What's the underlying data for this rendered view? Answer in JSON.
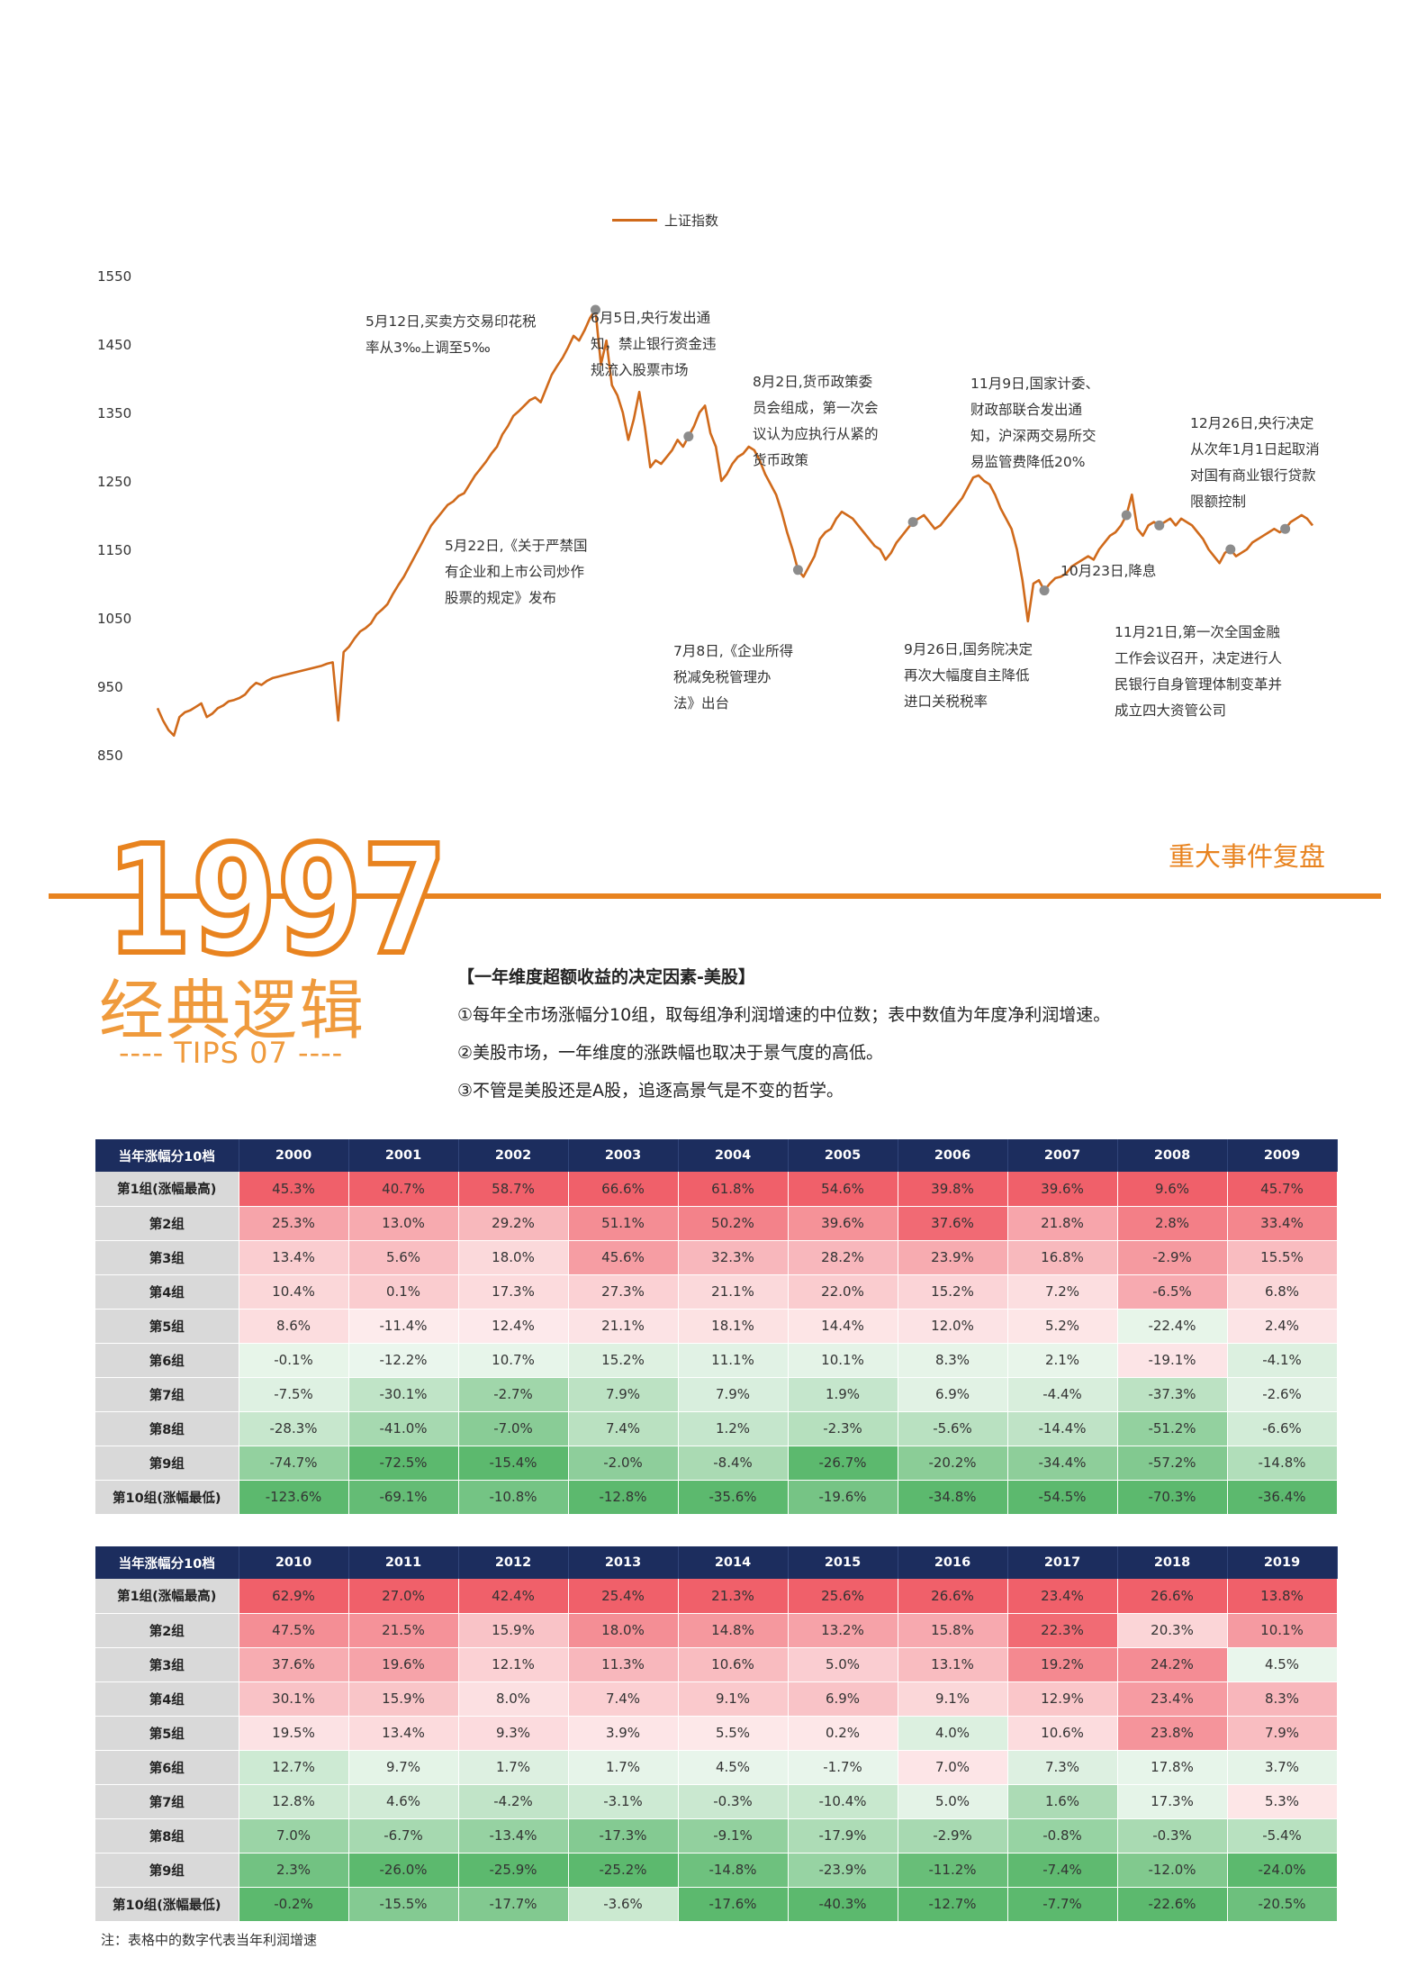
{
  "chart_data": {
    "type": "line",
    "series": [
      {
        "name": "上证指数",
        "color": "#d06a1b",
        "values": [
          918,
          900,
          886,
          878,
          905,
          912,
          915,
          920,
          925,
          905,
          910,
          918,
          922,
          928,
          930,
          933,
          938,
          948,
          955,
          952,
          958,
          962,
          964,
          966,
          968,
          970,
          972,
          974,
          976,
          978,
          980,
          983,
          985,
          900,
          1000,
          1008,
          1020,
          1030,
          1035,
          1042,
          1055,
          1062,
          1070,
          1085,
          1098,
          1110,
          1125,
          1140,
          1155,
          1170,
          1185,
          1195,
          1205,
          1215,
          1220,
          1228,
          1232,
          1245,
          1258,
          1268,
          1278,
          1290,
          1300,
          1318,
          1330,
          1345,
          1352,
          1360,
          1368,
          1372,
          1365,
          1385,
          1405,
          1418,
          1430,
          1445,
          1462,
          1455,
          1470,
          1488,
          1500,
          1420,
          1455,
          1390,
          1375,
          1350,
          1310,
          1340,
          1380,
          1330,
          1270,
          1280,
          1275,
          1285,
          1295,
          1310,
          1300,
          1315,
          1330,
          1350,
          1360,
          1320,
          1300,
          1250,
          1260,
          1275,
          1285,
          1290,
          1300,
          1295,
          1280,
          1260,
          1245,
          1230,
          1205,
          1175,
          1150,
          1120,
          1110,
          1125,
          1140,
          1165,
          1175,
          1180,
          1195,
          1205,
          1200,
          1195,
          1185,
          1175,
          1165,
          1155,
          1150,
          1135,
          1145,
          1160,
          1170,
          1180,
          1190,
          1195,
          1200,
          1190,
          1180,
          1185,
          1195,
          1205,
          1215,
          1225,
          1240,
          1255,
          1258,
          1250,
          1245,
          1230,
          1210,
          1195,
          1180,
          1150,
          1105,
          1045,
          1100,
          1105,
          1090,
          1100,
          1108,
          1110,
          1115,
          1125,
          1130,
          1135,
          1140,
          1135,
          1150,
          1160,
          1170,
          1175,
          1185,
          1200,
          1230,
          1180,
          1170,
          1185,
          1190,
          1185,
          1190,
          1195,
          1185,
          1195,
          1190,
          1185,
          1175,
          1165,
          1150,
          1140,
          1130,
          1145,
          1150,
          1140,
          1145,
          1150,
          1160,
          1165,
          1170,
          1175,
          1180,
          1175,
          1180,
          1190,
          1195,
          1200,
          1195,
          1185
        ]
      }
    ],
    "y_ticks": [
      "1550",
      "1450",
      "1350",
      "1250",
      "1150",
      "1050",
      "950",
      "850"
    ],
    "ylim": [
      850,
      1550
    ],
    "legend": "top-center",
    "annotations": [
      {
        "lines": [
          "5月12日,买卖方交易印花税",
          "率从3‰上调至5‰"
        ]
      },
      {
        "lines": [
          "6月5日,央行发出通",
          "知，禁止银行资金违",
          "规流入股票市场"
        ]
      },
      {
        "lines": [
          "5月22日,《关于严禁国",
          "有企业和上市公司炒作",
          "股票的规定》发布"
        ]
      },
      {
        "lines": [
          "8月2日,货币政策委",
          "员会组成，第一次会",
          "议认为应执行从紧的",
          "货币政策"
        ]
      },
      {
        "lines": [
          "7月8日,《企业所得",
          "税减免税管理办",
          "法》出台"
        ]
      },
      {
        "lines": [
          "11月9日,国家计委、",
          "财政部联合发出通",
          "知，沪深两交易所交",
          "易监管费降低20%"
        ]
      },
      {
        "lines": [
          "9月26日,国务院决定",
          "再次大幅度自主降低",
          "进口关税税率"
        ]
      },
      {
        "lines": [
          "10月23日,降息"
        ]
      },
      {
        "lines": [
          "12月26日,央行决定",
          "从次年1月1日起取消",
          "对国有商业银行贷款",
          "限额控制"
        ]
      },
      {
        "lines": [
          "11月21日,第一次全国金融",
          "工作会议召开，决定进行人",
          "民银行自身管理体制变革并",
          "成立四大资管公司"
        ]
      }
    ],
    "event_points": [
      1500,
      1355,
      1110,
      1200,
      1110,
      1175,
      1190,
      1165,
      1195
    ]
  },
  "header": {
    "year": "1997",
    "event_review": "重大事件复盘",
    "logic_title": "经典逻辑",
    "tips": "---- TIPS 07 ----"
  },
  "points": {
    "heading": "【一年维度超额收益的决定因素-美股】",
    "p1": "①每年全市场涨幅分10组，取每组净利润增速的中位数；表中数值为年度净利润增速。",
    "p2": "②美股市场，一年维度的涨跌幅也取决于景气度的高低。",
    "p3": "③不管是美股还是A股，追逐高景气是不变的哲学。"
  },
  "table1": {
    "corner": "当年涨幅分10档",
    "years": [
      "2000",
      "2001",
      "2002",
      "2003",
      "2004",
      "2005",
      "2006",
      "2007",
      "2008",
      "2009"
    ],
    "rows": [
      {
        "label": "第1组(涨幅最高)",
        "values": [
          "45.3%",
          "40.7%",
          "58.7%",
          "66.6%",
          "61.8%",
          "54.6%",
          "39.8%",
          "39.6%",
          "9.6%",
          "45.7%"
        ]
      },
      {
        "label": "第2组",
        "values": [
          "25.3%",
          "13.0%",
          "29.2%",
          "51.1%",
          "50.2%",
          "39.6%",
          "37.6%",
          "21.8%",
          "2.8%",
          "33.4%"
        ]
      },
      {
        "label": "第3组",
        "values": [
          "13.4%",
          "5.6%",
          "18.0%",
          "45.6%",
          "32.3%",
          "28.2%",
          "23.9%",
          "16.8%",
          "-2.9%",
          "15.5%"
        ]
      },
      {
        "label": "第4组",
        "values": [
          "10.4%",
          "0.1%",
          "17.3%",
          "27.3%",
          "21.1%",
          "22.0%",
          "15.2%",
          "7.2%",
          "-6.5%",
          "6.8%"
        ]
      },
      {
        "label": "第5组",
        "values": [
          "8.6%",
          "-11.4%",
          "12.4%",
          "21.1%",
          "18.1%",
          "14.4%",
          "12.0%",
          "5.2%",
          "-22.4%",
          "2.4%"
        ]
      },
      {
        "label": "第6组",
        "values": [
          "-0.1%",
          "-12.2%",
          "10.7%",
          "15.2%",
          "11.1%",
          "10.1%",
          "8.3%",
          "2.1%",
          "-19.1%",
          "-4.1%"
        ]
      },
      {
        "label": "第7组",
        "values": [
          "-7.5%",
          "-30.1%",
          "-2.7%",
          "7.9%",
          "7.9%",
          "1.9%",
          "6.9%",
          "-4.4%",
          "-37.3%",
          "-2.6%"
        ]
      },
      {
        "label": "第8组",
        "values": [
          "-28.3%",
          "-41.0%",
          "-7.0%",
          "7.4%",
          "1.2%",
          "-2.3%",
          "-5.6%",
          "-14.4%",
          "-51.2%",
          "-6.6%"
        ]
      },
      {
        "label": "第9组",
        "values": [
          "-74.7%",
          "-72.5%",
          "-15.4%",
          "-2.0%",
          "-8.4%",
          "-26.7%",
          "-20.2%",
          "-34.4%",
          "-57.2%",
          "-14.8%"
        ]
      },
      {
        "label": "第10组(涨幅最低)",
        "values": [
          "-123.6%",
          "-69.1%",
          "-10.8%",
          "-12.8%",
          "-35.6%",
          "-19.6%",
          "-34.8%",
          "-54.5%",
          "-70.3%",
          "-36.4%"
        ]
      }
    ]
  },
  "table2": {
    "corner": "当年涨幅分10档",
    "years": [
      "2010",
      "2011",
      "2012",
      "2013",
      "2014",
      "2015",
      "2016",
      "2017",
      "2018",
      "2019"
    ],
    "rows": [
      {
        "label": "第1组(涨幅最高)",
        "values": [
          "62.9%",
          "27.0%",
          "42.4%",
          "25.4%",
          "21.3%",
          "25.6%",
          "26.6%",
          "23.4%",
          "26.6%",
          "13.8%"
        ]
      },
      {
        "label": "第2组",
        "values": [
          "47.5%",
          "21.5%",
          "15.9%",
          "18.0%",
          "14.8%",
          "13.2%",
          "15.8%",
          "22.3%",
          "20.3%",
          "10.1%"
        ]
      },
      {
        "label": "第3组",
        "values": [
          "37.6%",
          "19.6%",
          "12.1%",
          "11.3%",
          "10.6%",
          "5.0%",
          "13.1%",
          "19.2%",
          "24.2%",
          "4.5%"
        ]
      },
      {
        "label": "第4组",
        "values": [
          "30.1%",
          "15.9%",
          "8.0%",
          "7.4%",
          "9.1%",
          "6.9%",
          "9.1%",
          "12.9%",
          "23.4%",
          "8.3%"
        ]
      },
      {
        "label": "第5组",
        "values": [
          "19.5%",
          "13.4%",
          "9.3%",
          "3.9%",
          "5.5%",
          "0.2%",
          "4.0%",
          "10.6%",
          "23.8%",
          "7.9%"
        ]
      },
      {
        "label": "第6组",
        "values": [
          "12.7%",
          "9.7%",
          "1.7%",
          "1.7%",
          "4.5%",
          "-1.7%",
          "7.0%",
          "7.3%",
          "17.8%",
          "3.7%"
        ]
      },
      {
        "label": "第7组",
        "values": [
          "12.8%",
          "4.6%",
          "-4.2%",
          "-3.1%",
          "-0.3%",
          "-10.4%",
          "5.0%",
          "1.6%",
          "17.3%",
          "5.3%"
        ]
      },
      {
        "label": "第8组",
        "values": [
          "7.0%",
          "-6.7%",
          "-13.4%",
          "-17.3%",
          "-9.1%",
          "-17.9%",
          "-2.9%",
          "-0.8%",
          "-0.3%",
          "-5.4%"
        ]
      },
      {
        "label": "第9组",
        "values": [
          "2.3%",
          "-26.0%",
          "-25.9%",
          "-25.2%",
          "-14.8%",
          "-23.9%",
          "-11.2%",
          "-7.4%",
          "-12.0%",
          "-24.0%"
        ]
      },
      {
        "label": "第10组(涨幅最低)",
        "values": [
          "-0.2%",
          "-15.5%",
          "-17.7%",
          "-3.6%",
          "-17.6%",
          "-40.3%",
          "-12.7%",
          "-7.7%",
          "-22.6%",
          "-20.5%"
        ]
      }
    ]
  },
  "note": "注：表格中的数字代表当年利润增速",
  "colors": {
    "accent": "#e8831f",
    "line": "#d06a1b",
    "table_header": "#1c2d5e",
    "row_header": "#d9d9d9",
    "positive": "#f0606a",
    "negative": "#5cb96e"
  }
}
